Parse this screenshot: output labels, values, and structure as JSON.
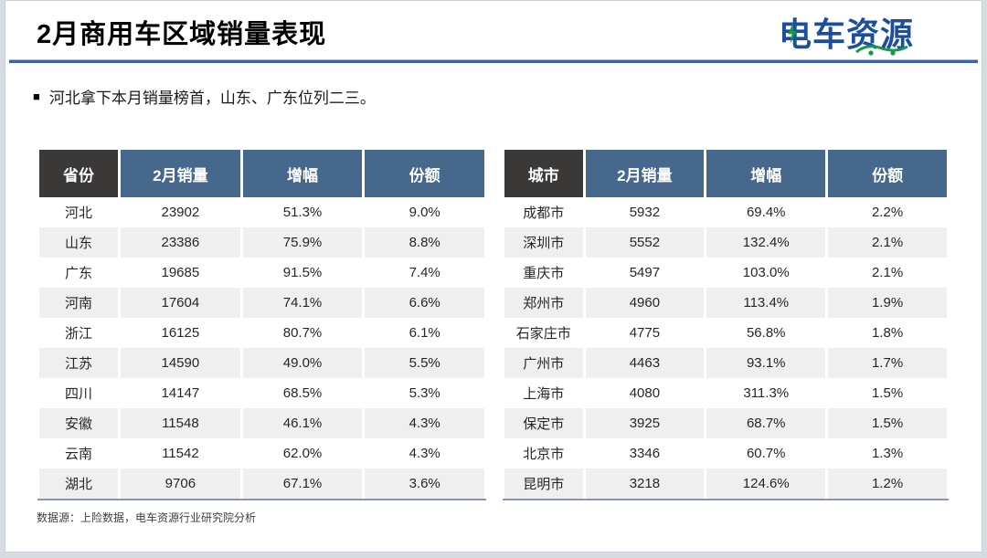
{
  "slide": {
    "title": "2月商用车区域销量表现",
    "bullet_marker": "■",
    "bullet": "河北拿下本月销量榜首，山东、广东位列二三。",
    "source_note": "数据源：上险数据，电车资源行业研究院分析",
    "logo_text": "电车资源"
  },
  "colors": {
    "accent_blue_rule": "#3a63ae",
    "header_blue": "#46688c",
    "header_dark": "#3b3838",
    "row_alt_gray": "#efefef",
    "table_bottom_line": "#8c96a8",
    "logo_blue": "#1c4e9e",
    "logo_green": "#169a44"
  },
  "left_table": {
    "headers": [
      "省份",
      "2月销量",
      "增幅",
      "份额"
    ],
    "rows": [
      [
        "河北",
        "23902",
        "51.3%",
        "9.0%"
      ],
      [
        "山东",
        "23386",
        "75.9%",
        "8.8%"
      ],
      [
        "广东",
        "19685",
        "91.5%",
        "7.4%"
      ],
      [
        "河南",
        "17604",
        "74.1%",
        "6.6%"
      ],
      [
        "浙江",
        "16125",
        "80.7%",
        "6.1%"
      ],
      [
        "江苏",
        "14590",
        "49.0%",
        "5.5%"
      ],
      [
        "四川",
        "14147",
        "68.5%",
        "5.3%"
      ],
      [
        "安徽",
        "11548",
        "46.1%",
        "4.3%"
      ],
      [
        "云南",
        "11542",
        "62.0%",
        "4.3%"
      ],
      [
        "湖北",
        "9706",
        "67.1%",
        "3.6%"
      ]
    ]
  },
  "right_table": {
    "headers": [
      "城市",
      "2月销量",
      "增幅",
      "份额"
    ],
    "rows": [
      [
        "成都市",
        "5932",
        "69.4%",
        "2.2%"
      ],
      [
        "深圳市",
        "5552",
        "132.4%",
        "2.1%"
      ],
      [
        "重庆市",
        "5497",
        "103.0%",
        "2.1%"
      ],
      [
        "郑州市",
        "4960",
        "113.4%",
        "1.9%"
      ],
      [
        "石家庄市",
        "4775",
        "56.8%",
        "1.8%"
      ],
      [
        "广州市",
        "4463",
        "93.1%",
        "1.7%"
      ],
      [
        "上海市",
        "4080",
        "311.3%",
        "1.5%"
      ],
      [
        "保定市",
        "3925",
        "68.7%",
        "1.5%"
      ],
      [
        "北京市",
        "3346",
        "60.7%",
        "1.3%"
      ],
      [
        "昆明市",
        "3218",
        "124.6%",
        "1.2%"
      ]
    ]
  }
}
